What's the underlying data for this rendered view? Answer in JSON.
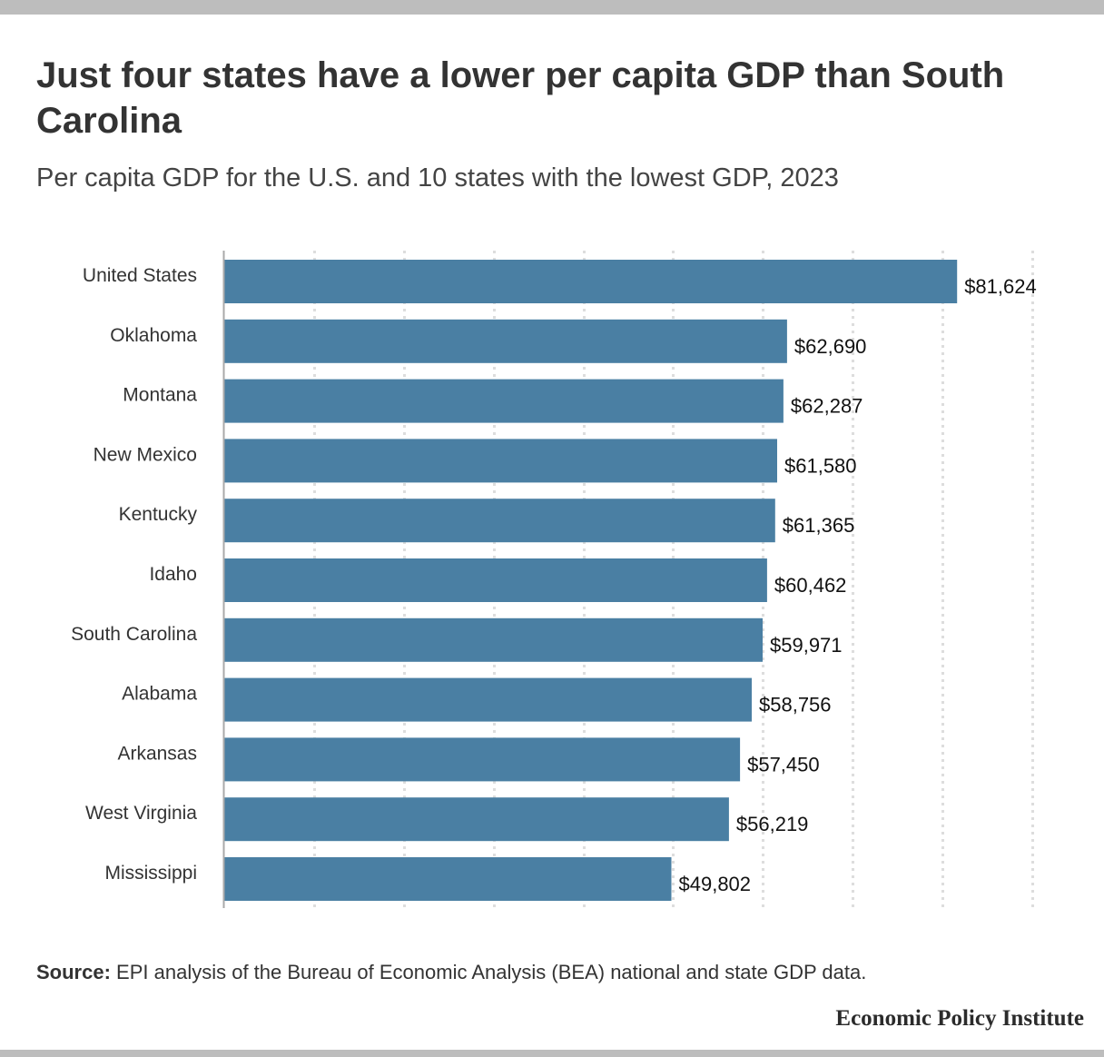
{
  "title": "Just four states have a lower per capita GDP than South Carolina",
  "subtitle": "Per capita GDP for the U.S. and 10 states with the lowest GDP, 2023",
  "source": {
    "label": "Source:",
    "text": "EPI analysis of the Bureau of Economic Analysis (BEA) national and state GDP data."
  },
  "publisher": "Economic Policy Institute",
  "colors": {
    "bar": "#4a7fa3",
    "grid": "#dddddd",
    "axis": "#aaaaaa",
    "text": "#333333",
    "rule": "#bdbdbd"
  },
  "chart_data": {
    "type": "bar",
    "orientation": "horizontal",
    "title": "Just four states have a lower per capita GDP than South Carolina",
    "subtitle": "Per capita GDP for the U.S. and 10 states with the lowest GDP, 2023",
    "xlabel": "",
    "ylabel": "",
    "categories": [
      "United States",
      "Oklahoma",
      "Montana",
      "New Mexico",
      "Kentucky",
      "Idaho",
      "South Carolina",
      "Alabama",
      "Arkansas",
      "West Virginia",
      "Mississippi"
    ],
    "values": [
      81624,
      62690,
      62287,
      61580,
      61365,
      60462,
      59971,
      58756,
      57450,
      56219,
      49802
    ],
    "value_labels": [
      "$81,624",
      "$62,690",
      "$62,287",
      "$61,580",
      "$61,365",
      "$60,462",
      "$59,971",
      "$58,756",
      "$57,450",
      "$56,219",
      "$49,802"
    ],
    "xlim": [
      0,
      90000
    ],
    "grid": true,
    "grid_style": "dotted",
    "grid_step": 10000,
    "x_tick_labels_shown": false,
    "legend": "none"
  }
}
